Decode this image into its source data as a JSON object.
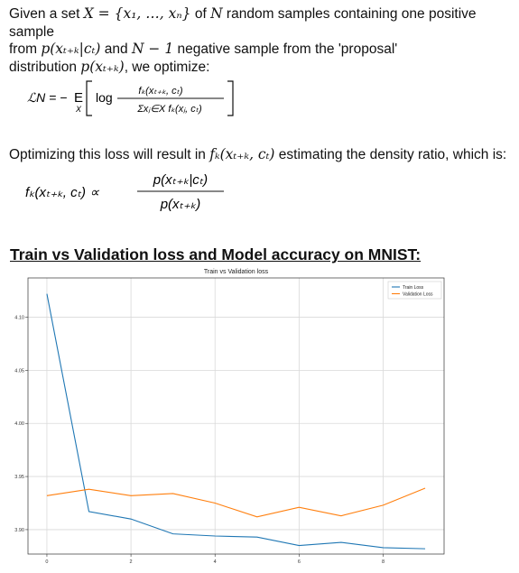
{
  "intro": {
    "line1_a": "Given a set ",
    "set_expr": "X = {x₁, …, xₙ}",
    "line1_b": " of ",
    "n": "N",
    "line1_c": " random samples containing one positive sample",
    "line2_a": "from ",
    "pos_dist": "p(xₜ₊ₖ|cₜ)",
    "line2_b": " and ",
    "neg_count": "N − 1",
    "line2_c": " negative sample from the 'proposal'",
    "line3_a": "distribution ",
    "proposal": "p(xₜ₊ₖ)",
    "line3_b": ", we optimize:"
  },
  "loss_formula": {
    "lhs": "ℒN = −",
    "expect": "E",
    "expect_sub": "X",
    "log": "log",
    "numerator": "fₖ(xₜ₊ₖ, cₜ)",
    "denominator": "Σxⱼ∈X fₖ(xⱼ, cₜ)"
  },
  "optimizing": {
    "text_a": "Optimizing this loss will result in ",
    "fk": "fₖ(xₜ₊ₖ, cₜ)",
    "text_b": " estimating the density ratio, which is:"
  },
  "ratio_formula": {
    "lhs": "fₖ(xₜ₊ₖ, cₜ) ∝",
    "numerator": "p(xₜ₊ₖ|cₜ)",
    "denominator": "p(xₜ₊ₖ)"
  },
  "section_title": "Train vs Validation loss and Model accuracy on MNIST:",
  "chart_data": {
    "type": "line",
    "title": "Train vs Validation loss",
    "xlabel": "",
    "ylabel": "",
    "x": [
      0,
      1,
      2,
      3,
      4,
      5,
      6,
      7,
      8,
      9
    ],
    "xticks": [
      "0",
      "2",
      "4",
      "6",
      "8"
    ],
    "yticks": [
      "3.90",
      "3.95",
      "4.00",
      "4.05",
      "4.10"
    ],
    "xlim": [
      -0.45,
      9.45
    ],
    "ylim": [
      3.877,
      4.137
    ],
    "grid": true,
    "legend_position": "top-right",
    "series": [
      {
        "name": "Train Loss",
        "color": "#1f77b4",
        "values": [
          4.122,
          3.917,
          3.91,
          3.896,
          3.894,
          3.893,
          3.885,
          3.888,
          3.883,
          3.882
        ]
      },
      {
        "name": "Validation Loss",
        "color": "#ff7f0e",
        "values": [
          3.932,
          3.938,
          3.932,
          3.934,
          3.925,
          3.912,
          3.921,
          3.913,
          3.923,
          3.939
        ]
      }
    ]
  }
}
